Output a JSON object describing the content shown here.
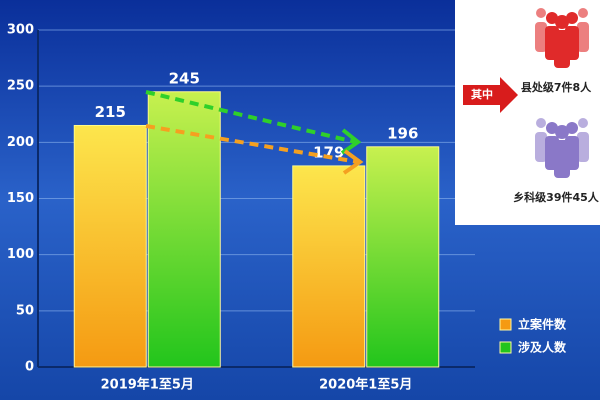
{
  "chart_data": {
    "type": "bar",
    "categories": [
      "2019年1至5月",
      "2020年1至5月"
    ],
    "series": [
      {
        "name": "立案件数",
        "color": "#f59a12",
        "values": [
          215,
          179
        ]
      },
      {
        "name": "涉及人数",
        "color": "#22c51c",
        "values": [
          245,
          196
        ]
      }
    ],
    "ylim": [
      0,
      300
    ],
    "yticks": [
      0,
      50,
      100,
      150,
      200,
      250,
      300
    ],
    "grid": true,
    "legend": "lower right",
    "inset": {
      "label": "其中",
      "items": [
        "县处级7件8人",
        "乡科级39件45人"
      ]
    }
  }
}
